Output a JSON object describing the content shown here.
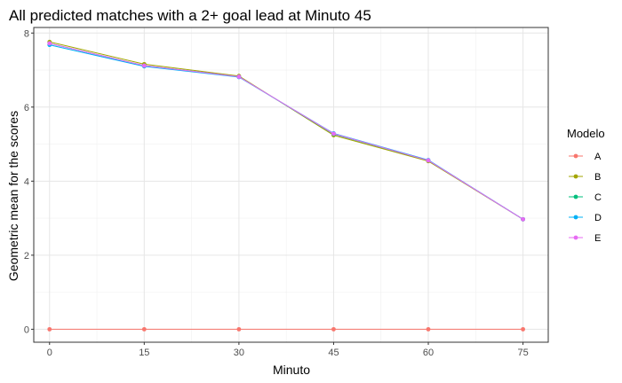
{
  "chart_data": {
    "type": "line",
    "title": "All predicted matches with a 2+ goal lead at Minuto 45",
    "xlabel": "Minuto",
    "ylabel": "Geometric mean for the scores",
    "x": [
      0,
      15,
      30,
      45,
      60,
      75
    ],
    "xlim": [
      -2.5,
      79
    ],
    "ylim": [
      -0.35,
      8.15
    ],
    "xticks": [
      "0",
      "15",
      "30",
      "45",
      "60",
      "75"
    ],
    "yticks": [
      "0",
      "2",
      "4",
      "6",
      "8"
    ],
    "grid": true,
    "legend_title": "Modelo",
    "legend_position": "right",
    "series": [
      {
        "name": "A",
        "color": "#F8766D",
        "values": [
          0,
          0,
          0,
          0,
          0,
          0
        ]
      },
      {
        "name": "B",
        "color": "#A3A500",
        "values": [
          7.76,
          7.16,
          6.84,
          5.24,
          4.54,
          2.97
        ]
      },
      {
        "name": "C",
        "color": "#00BF7D",
        "values": [
          7.72,
          7.12,
          6.82,
          5.27,
          4.56,
          2.97
        ]
      },
      {
        "name": "D",
        "color": "#00B0F6",
        "values": [
          7.68,
          7.1,
          6.81,
          5.29,
          4.57,
          2.97
        ]
      },
      {
        "name": "E",
        "color": "#E76BF3",
        "values": [
          7.72,
          7.12,
          6.82,
          5.28,
          4.56,
          2.97
        ]
      }
    ]
  }
}
